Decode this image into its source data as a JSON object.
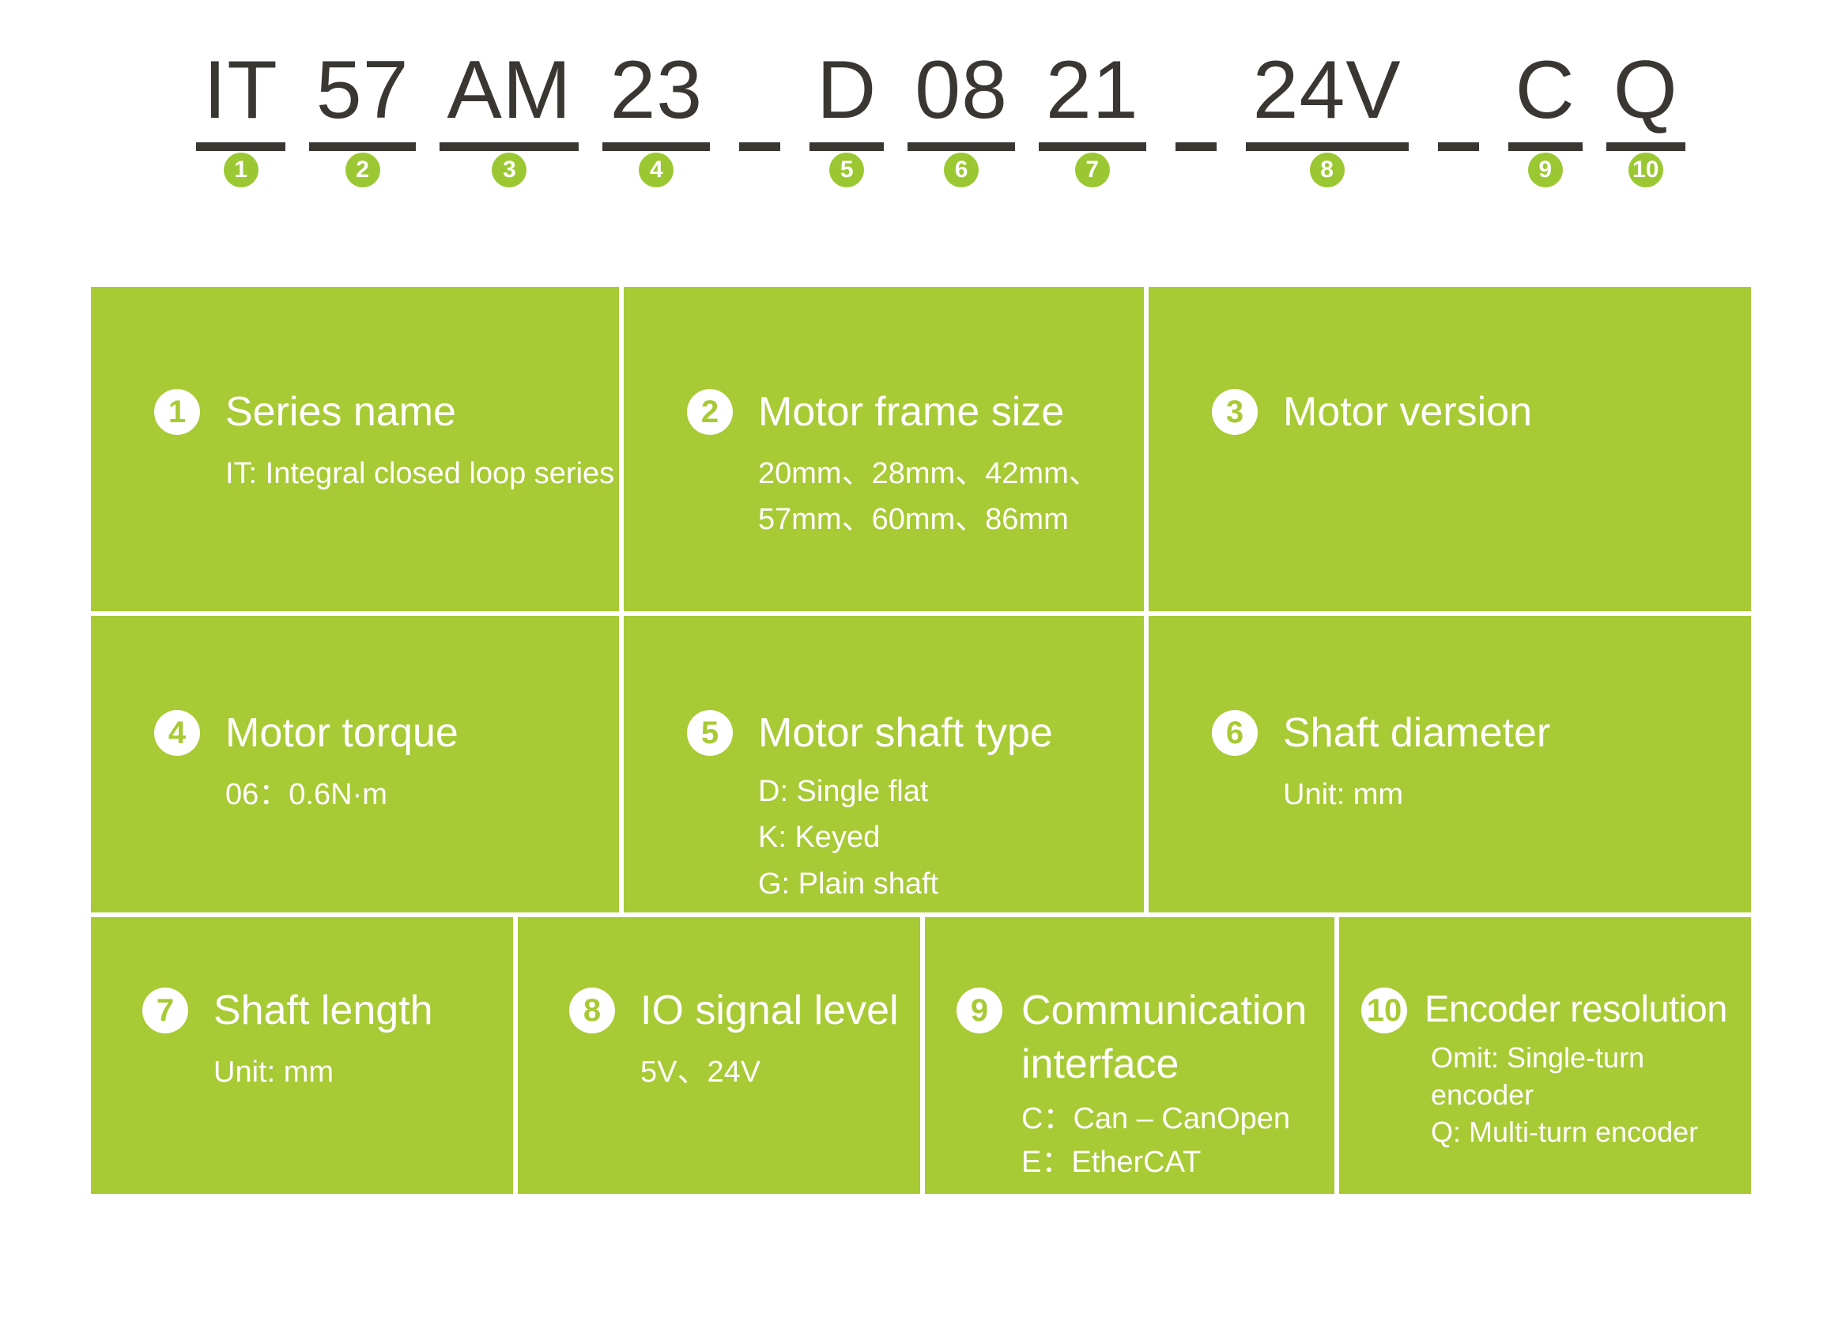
{
  "colors": {
    "cell_green": "#a7ca35",
    "badge_green": "#9bc832",
    "code_dark": "#3a3733",
    "text_on_green": "#ffffff"
  },
  "model_code": {
    "segments": [
      {
        "text": "IT",
        "num": "1"
      },
      {
        "text": "57",
        "num": "2"
      },
      {
        "text": "AM",
        "num": "3"
      },
      {
        "text": "23",
        "num": "4"
      },
      {
        "separator": true
      },
      {
        "text": "D",
        "num": "5"
      },
      {
        "text": "08",
        "num": "6"
      },
      {
        "text": "21",
        "num": "7"
      },
      {
        "separator": true
      },
      {
        "text": "24V",
        "num": "8"
      },
      {
        "separator": true
      },
      {
        "text": "C",
        "num": "9"
      },
      {
        "text": "Q",
        "num": "10"
      }
    ]
  },
  "legend": {
    "cells": [
      {
        "num": "1",
        "title": "Series name",
        "lines": [
          "IT: Integral closed loop series"
        ]
      },
      {
        "num": "2",
        "title": "Motor frame size",
        "lines": [
          "20mm、28mm、42mm、",
          "57mm、60mm、86mm"
        ]
      },
      {
        "num": "3",
        "title": "Motor version",
        "lines": []
      },
      {
        "num": "4",
        "title": "Motor torque",
        "lines": [
          "06：0.6N·m"
        ]
      },
      {
        "num": "5",
        "title": "Motor shaft type",
        "lines": [
          "D: Single flat",
          "K: Keyed",
          "G: Plain shaft"
        ]
      },
      {
        "num": "6",
        "title": "Shaft diameter",
        "lines": [
          "Unit: mm"
        ]
      },
      {
        "num": "7",
        "title": "Shaft length",
        "lines": [
          "Unit: mm"
        ]
      },
      {
        "num": "8",
        "title": "IO signal level",
        "lines": [
          "5V、24V"
        ]
      },
      {
        "num": "9",
        "title": "Communication interface",
        "lines": [
          "C：Can – CanOpen",
          "E：EtherCAT"
        ]
      },
      {
        "num": "10",
        "title": "Encoder resolution",
        "lines": [
          "Omit: Single-turn encoder",
          "Q: Multi-turn encoder"
        ]
      }
    ]
  }
}
